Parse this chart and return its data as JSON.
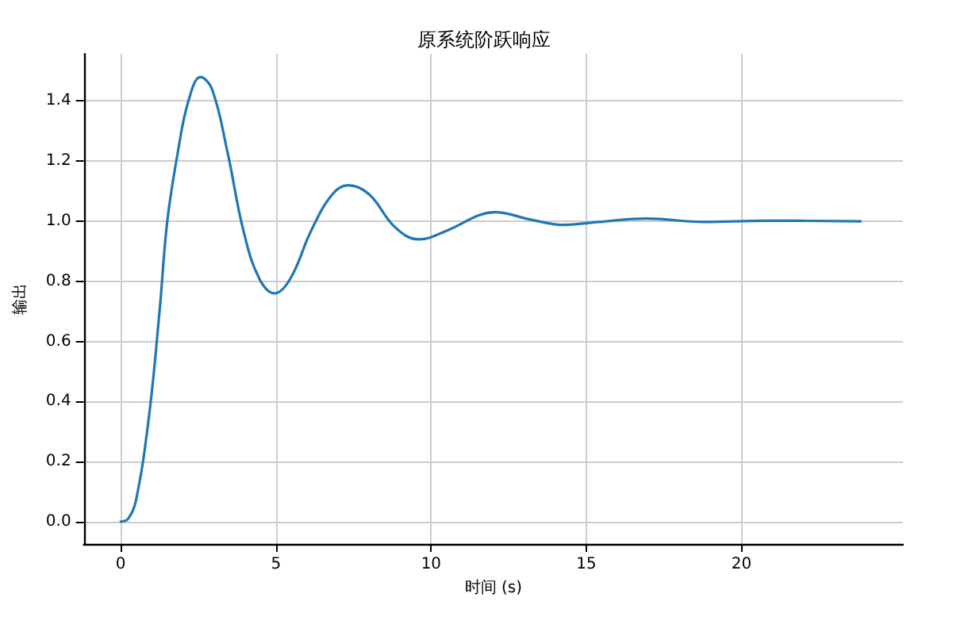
{
  "chart_data": {
    "type": "line",
    "title": "原系统阶跃响应",
    "xlabel": "时间 (s)",
    "ylabel": "输出",
    "x": [
      0,
      0.24,
      0.49,
      0.91,
      1.25,
      1.5,
      1.84,
      2.18,
      2.57,
      2.94,
      3.44,
      3.95,
      4.46,
      4.96,
      5.47,
      6.14,
      6.82,
      7.32,
      8.0,
      8.84,
      9.6,
      10.53,
      11.54,
      12.05,
      13.23,
      14.24,
      15.42,
      16.94,
      18.8,
      20.8,
      23.84
    ],
    "series": [
      {
        "color": "#1f77b4",
        "values": [
          0,
          0.01,
          0.07,
          0.35,
          0.7,
          1.0,
          1.23,
          1.4,
          1.48,
          1.44,
          1.23,
          0.97,
          0.81,
          0.76,
          0.81,
          0.97,
          1.09,
          1.12,
          1.09,
          0.98,
          0.94,
          0.97,
          1.02,
          1.03,
          1.005,
          0.988,
          0.998,
          1.009,
          0.998,
          1.002,
          1.0
        ]
      }
    ],
    "xlim": [
      -1.19,
      25.2
    ],
    "ylim": [
      -0.074,
      1.557
    ],
    "xticks": [
      0,
      5,
      10,
      15,
      20
    ],
    "yticks": [
      {
        "value": 0,
        "label": "0.0"
      },
      {
        "value": 0.2,
        "label": "0.2"
      },
      {
        "value": 0.4,
        "label": "0.4"
      },
      {
        "value": 0.6,
        "label": "0.6"
      },
      {
        "value": 0.8,
        "label": "0.8"
      },
      {
        "value": 1,
        "label": "1.0"
      },
      {
        "value": 1.2,
        "label": "1.2"
      },
      {
        "value": 1.4,
        "label": "1.4"
      }
    ],
    "grid": true,
    "marker": "none",
    "line_style": "solid"
  }
}
